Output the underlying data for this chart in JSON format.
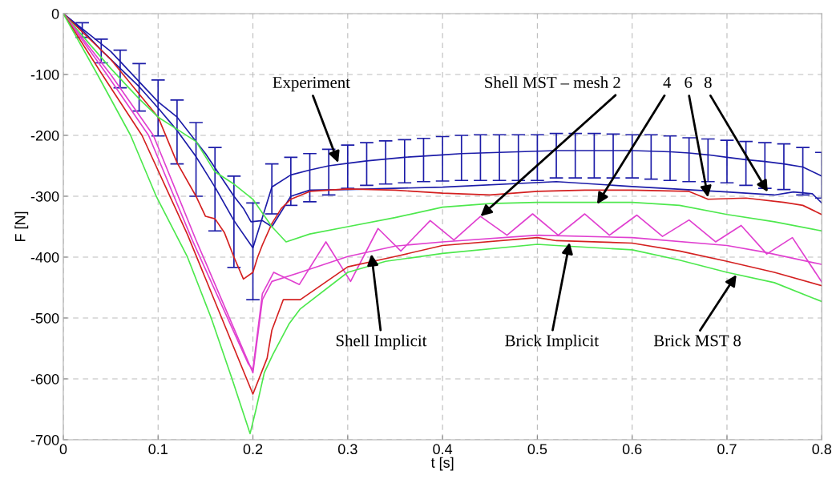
{
  "chart_data": {
    "type": "line",
    "xlabel": "t [s]",
    "ylabel": "F [N]",
    "xlim": [
      0,
      0.8
    ],
    "ylim": [
      -700,
      0
    ],
    "xticks": [
      0,
      0.1,
      0.2,
      0.3,
      0.4,
      0.5,
      0.6,
      0.7,
      0.8
    ],
    "yticks": [
      -700,
      -600,
      -500,
      -400,
      -300,
      -200,
      -100,
      0
    ],
    "grid": true,
    "marker": "none",
    "line_style": "solid",
    "series": [
      {
        "color": "#1c1ca8",
        "x": [
          0,
          0.02,
          0.04,
          0.06,
          0.08,
          0.1,
          0.12,
          0.14,
          0.16,
          0.18,
          0.2,
          0.22,
          0.24,
          0.26,
          0.28,
          0.3,
          0.32,
          0.34,
          0.36,
          0.38,
          0.4,
          0.42,
          0.44,
          0.46,
          0.48,
          0.5,
          0.52,
          0.54,
          0.56,
          0.58,
          0.6,
          0.62,
          0.64,
          0.66,
          0.68,
          0.7,
          0.72,
          0.74,
          0.76,
          0.78,
          0.8
        ],
        "values": [
          0,
          -27,
          -60,
          -90,
          -120,
          -155,
          -192,
          -235,
          -285,
          -340,
          -385,
          -285,
          -265,
          -257,
          -250,
          -246,
          -242,
          -239,
          -236,
          -234,
          -232,
          -230,
          -229,
          -228,
          -227,
          -226,
          -225,
          -225,
          -225,
          -225,
          -225,
          -226,
          -227,
          -229,
          -232,
          -236,
          -240,
          -243,
          -247,
          -252,
          -267
        ],
        "errors": [
          null,
          [
            -39,
            -15
          ],
          [
            -81,
            -42
          ],
          [
            -122,
            -60
          ],
          [
            -160,
            -82
          ],
          [
            -201,
            -109
          ],
          [
            -247,
            -142
          ],
          [
            -300,
            -179
          ],
          [
            -357,
            -220
          ],
          [
            -417,
            -267
          ],
          [
            -470,
            -311
          ],
          [
            -329,
            -247
          ],
          [
            -315,
            -236
          ],
          [
            -309,
            -230
          ],
          [
            -298,
            -223
          ],
          [
            -287,
            -216
          ],
          [
            -282,
            -212
          ],
          [
            -280,
            -209
          ],
          [
            -278,
            -207
          ],
          [
            -276,
            -205
          ],
          [
            -275,
            -202
          ],
          [
            -274,
            -200
          ],
          [
            -274,
            -199
          ],
          [
            -274,
            -199
          ],
          [
            -274,
            -199
          ],
          [
            -274,
            -199
          ],
          [
            -270,
            -197
          ],
          [
            -270,
            -197
          ],
          [
            -270,
            -197
          ],
          [
            -270,
            -198
          ],
          [
            -270,
            -199
          ],
          [
            -272,
            -199
          ],
          [
            -274,
            -201
          ],
          [
            -276,
            -204
          ],
          [
            -276,
            -206
          ],
          [
            -278,
            -208
          ],
          [
            -282,
            -210
          ],
          [
            -287,
            -212
          ],
          [
            -289,
            -214
          ],
          [
            -298,
            -220
          ],
          [
            -303,
            -228
          ]
        ]
      },
      {
        "color": "#1c1ca8",
        "x": [
          0,
          0.05,
          0.1,
          0.12,
          0.15,
          0.18,
          0.19,
          0.198,
          0.21,
          0.22,
          0.24,
          0.26,
          0.3,
          0.4,
          0.52,
          0.6,
          0.7,
          0.75,
          0.77,
          0.79,
          0.8
        ],
        "values": [
          0,
          -62,
          -145,
          -170,
          -230,
          -300,
          -320,
          -342,
          -340,
          -350,
          -300,
          -290,
          -289,
          -285,
          -276,
          -284,
          -293,
          -298,
          -293,
          -296,
          -311
        ]
      },
      {
        "color": "#d42020",
        "x": [
          0,
          0.05,
          0.1,
          0.12,
          0.14,
          0.15,
          0.16,
          0.17,
          0.18,
          0.19,
          0.2,
          0.205,
          0.21,
          0.22,
          0.23,
          0.24,
          0.26,
          0.3,
          0.35,
          0.4,
          0.45,
          0.5,
          0.55,
          0.6,
          0.66,
          0.68,
          0.72,
          0.76,
          0.78,
          0.8
        ],
        "values": [
          0,
          -75,
          -170,
          -245,
          -300,
          -333,
          -337,
          -360,
          -400,
          -436,
          -425,
          -400,
          -380,
          -345,
          -320,
          -305,
          -292,
          -288,
          -290,
          -295,
          -298,
          -292,
          -290,
          -290,
          -292,
          -305,
          -303,
          -310,
          -315,
          -330
        ]
      },
      {
        "color": "#4de84d",
        "x": [
          0,
          0.05,
          0.08,
          0.1,
          0.12,
          0.14,
          0.16,
          0.18,
          0.2,
          0.22,
          0.235,
          0.26,
          0.3,
          0.35,
          0.4,
          0.45,
          0.5,
          0.6,
          0.65,
          0.7,
          0.75,
          0.8
        ],
        "values": [
          0,
          -90,
          -140,
          -170,
          -190,
          -210,
          -260,
          -280,
          -305,
          -350,
          -375,
          -362,
          -350,
          -335,
          -318,
          -312,
          -310,
          -310,
          -315,
          -330,
          -342,
          -357
        ]
      },
      {
        "color": "#e040d0",
        "x": [
          0,
          0.046,
          0.09,
          0.136,
          0.195,
          0.2,
          0.21,
          0.222,
          0.249,
          0.277,
          0.303,
          0.332,
          0.356,
          0.387,
          0.412,
          0.44,
          0.468,
          0.495,
          0.522,
          0.55,
          0.576,
          0.605,
          0.632,
          0.66,
          0.688,
          0.715,
          0.742,
          0.769,
          0.8
        ],
        "values": [
          0,
          -100,
          -200,
          -372,
          -575,
          -585,
          -460,
          -425,
          -445,
          -375,
          -440,
          -353,
          -390,
          -340,
          -372,
          -333,
          -364,
          -329,
          -364,
          -329,
          -364,
          -331,
          -366,
          -339,
          -375,
          -348,
          -395,
          -368,
          -441
        ]
      },
      {
        "color": "#e040d0",
        "x": [
          0,
          0.05,
          0.095,
          0.14,
          0.2,
          0.21,
          0.22,
          0.25,
          0.3,
          0.35,
          0.4,
          0.5,
          0.6,
          0.7,
          0.74,
          0.8
        ],
        "values": [
          0,
          -100,
          -200,
          -372,
          -590,
          -470,
          -440,
          -425,
          -399,
          -382,
          -375,
          -364,
          -368,
          -381,
          -392,
          -412
        ]
      },
      {
        "color": "#d42020",
        "x": [
          0,
          0.041,
          0.083,
          0.131,
          0.2,
          0.215,
          0.22,
          0.232,
          0.25,
          0.3,
          0.35,
          0.4,
          0.5,
          0.52,
          0.6,
          0.65,
          0.7,
          0.75,
          0.8
        ],
        "values": [
          0,
          -100,
          -200,
          -363,
          -625,
          -566,
          -520,
          -470,
          -470,
          -416,
          -399,
          -381,
          -368,
          -373,
          -377,
          -390,
          -407,
          -425,
          -447
        ]
      },
      {
        "color": "#4de84d",
        "x": [
          0,
          0.036,
          0.071,
          0.098,
          0.131,
          0.156,
          0.178,
          0.197,
          0.203,
          0.212,
          0.221,
          0.238,
          0.25,
          0.3,
          0.34,
          0.4,
          0.5,
          0.52,
          0.6,
          0.65,
          0.7,
          0.75,
          0.8
        ],
        "values": [
          0,
          -100,
          -200,
          -300,
          -400,
          -500,
          -600,
          -690,
          -652,
          -590,
          -560,
          -510,
          -485,
          -425,
          -407,
          -394,
          -379,
          -381,
          -388,
          -405,
          -425,
          -442,
          -473
        ]
      }
    ],
    "annotations": [
      {
        "text": "Experiment",
        "x": 0.29,
        "y": -245
      },
      {
        "text": "Shell MST – mesh 2",
        "x": 0.44,
        "y": -333
      },
      {
        "text": "4",
        "x": 0.563,
        "y": -313
      },
      {
        "text": "6",
        "x": 0.68,
        "y": -302
      },
      {
        "text": "8",
        "x": 0.743,
        "y": -293
      },
      {
        "text": "Shell Implicit",
        "x": 0.325,
        "y": -395
      },
      {
        "text": "Brick Implicit",
        "x": 0.534,
        "y": -376
      },
      {
        "text": "Brick MST 8",
        "x": 0.71,
        "y": -429
      }
    ]
  }
}
